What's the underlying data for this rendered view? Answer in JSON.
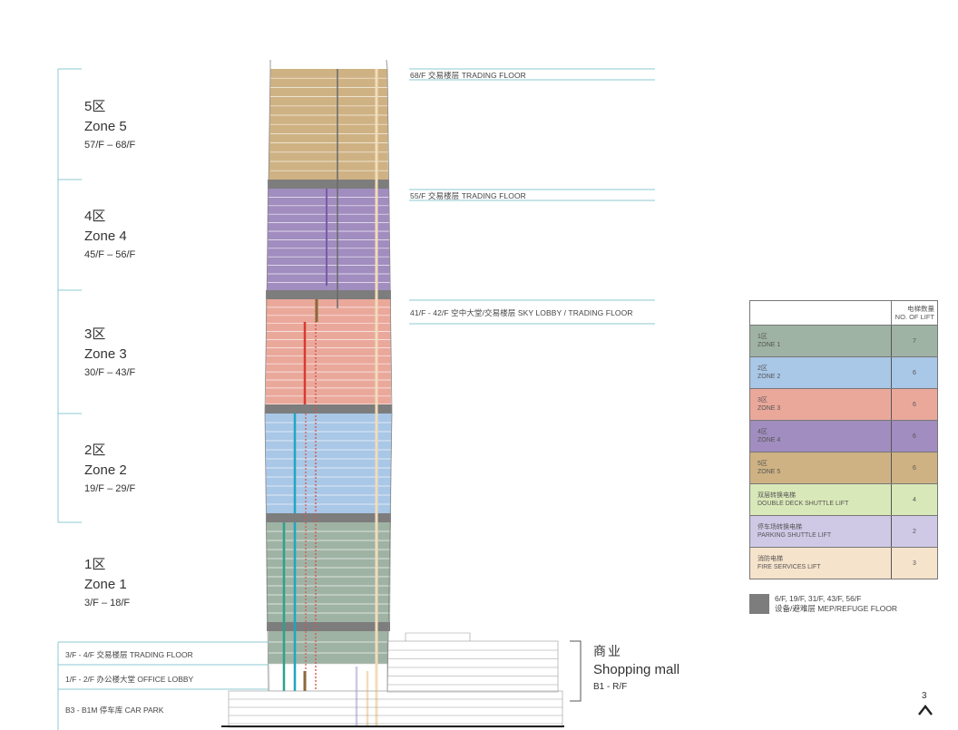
{
  "zones": [
    {
      "cn": "5区",
      "en": "Zone 5",
      "floors": "57/F – 68/F"
    },
    {
      "cn": "4区",
      "en": "Zone 4",
      "floors": "45/F – 56/F"
    },
    {
      "cn": "3区",
      "en": "Zone 3",
      "floors": "30/F – 43/F"
    },
    {
      "cn": "2区",
      "en": "Zone 2",
      "floors": "19/F – 29/F"
    },
    {
      "cn": "1区",
      "en": "Zone 1",
      "floors": "3/F – 18/F"
    }
  ],
  "callouts": {
    "c68": "68/F 交易楼层 TRADING FLOOR",
    "c55": "55/F 交易楼层 TRADING FLOOR",
    "c41": "41/F - 42/F 空中大堂/交易楼层 SKY LOBBY / TRADING FLOOR"
  },
  "bottom_labels": {
    "trading": "3/F - 4/F 交易楼层 TRADING FLOOR",
    "lobby": "1/F - 2/F 办公楼大堂 OFFICE LOBBY",
    "carpark": "B3 - B1M 停车库 CAR PARK"
  },
  "mall": {
    "cn": "商业",
    "en": "Shopping mall",
    "floors": "B1 - R/F"
  },
  "legend": {
    "header_cn": "电梯数量",
    "header_en": "NO. OF LIFT",
    "rows": [
      {
        "cn": "1区",
        "en": "ZONE 1",
        "count": "7",
        "color": "#9fb3a4"
      },
      {
        "cn": "2区",
        "en": "ZONE 2",
        "count": "6",
        "color": "#a9c7e6"
      },
      {
        "cn": "3区",
        "en": "ZONE 3",
        "count": "6",
        "color": "#eaa89b"
      },
      {
        "cn": "4区",
        "en": "ZONE 4",
        "count": "6",
        "color": "#a18dbf"
      },
      {
        "cn": "5区",
        "en": "ZONE 5",
        "count": "6",
        "color": "#cfb283"
      },
      {
        "cn": "双层转换电梯",
        "en": "DOUBLE DECK SHUTTLE LIFT",
        "count": "4",
        "color": "#d9e8b8"
      },
      {
        "cn": "停车场转换电梯",
        "en": "PARKING SHUTTLE LIFT",
        "count": "2",
        "color": "#cfc9e6"
      },
      {
        "cn": "消防电梯",
        "en": "FIRE SERVICES LIFT",
        "count": "3",
        "color": "#f6e3cb"
      }
    ]
  },
  "mep": {
    "line1": "6/F, 19/F, 31/F, 43/F, 56/F",
    "line2": "设备/避难层 MEP/REFUGE FLOOR",
    "color": "#7d7d7d"
  },
  "page": {
    "number": "3",
    "caret": "^"
  }
}
